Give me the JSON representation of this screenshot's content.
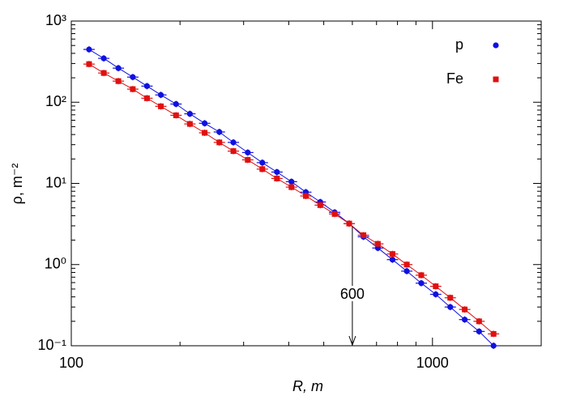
{
  "chart_data": {
    "type": "scatter",
    "x_label": "R,  m",
    "y_label": "ρ,  m⁻²",
    "xscale": "log",
    "yscale": "log",
    "xlim": [
      100,
      2000
    ],
    "ylim": [
      0.1,
      1000
    ],
    "xticks": [
      100,
      1000
    ],
    "yticks": [
      {
        "value": 0.1,
        "label": "10⁻¹"
      },
      {
        "value": 1,
        "label": "10⁰"
      },
      {
        "value": 10,
        "label": "10¹"
      },
      {
        "value": 100,
        "label": "10²"
      },
      {
        "value": 1000,
        "label": "10³"
      }
    ],
    "legend": "top-right",
    "x": [
      112,
      123,
      135,
      148,
      162,
      177,
      195,
      213,
      234,
      257,
      281,
      308,
      338,
      371,
      407,
      446,
      489,
      536,
      588,
      644,
      706,
      775,
      849,
      931,
      1021,
      1120,
      1228,
      1346,
      1476
    ],
    "series": [
      {
        "name": "p",
        "color": "#1010e0",
        "marker": "circle",
        "values": [
          447,
          347,
          263,
          204,
          158,
          123,
          95,
          72,
          55,
          43,
          32,
          24,
          18,
          13.8,
          10.5,
          7.8,
          5.9,
          4.4,
          3.2,
          2.2,
          1.6,
          1.15,
          0.83,
          0.59,
          0.43,
          0.3,
          0.21,
          0.15,
          0.1
        ]
      },
      {
        "name": "Fe",
        "color": "#e01010",
        "marker": "square",
        "values": [
          295,
          229,
          182,
          145,
          112,
          89,
          69,
          54,
          42,
          32,
          25,
          19.5,
          15,
          11.5,
          9,
          7,
          5.4,
          4.2,
          3.2,
          2.3,
          1.8,
          1.35,
          1.0,
          0.74,
          0.54,
          0.39,
          0.28,
          0.2,
          0.14
        ]
      }
    ],
    "annotation": {
      "text": "600",
      "x": 600
    }
  }
}
